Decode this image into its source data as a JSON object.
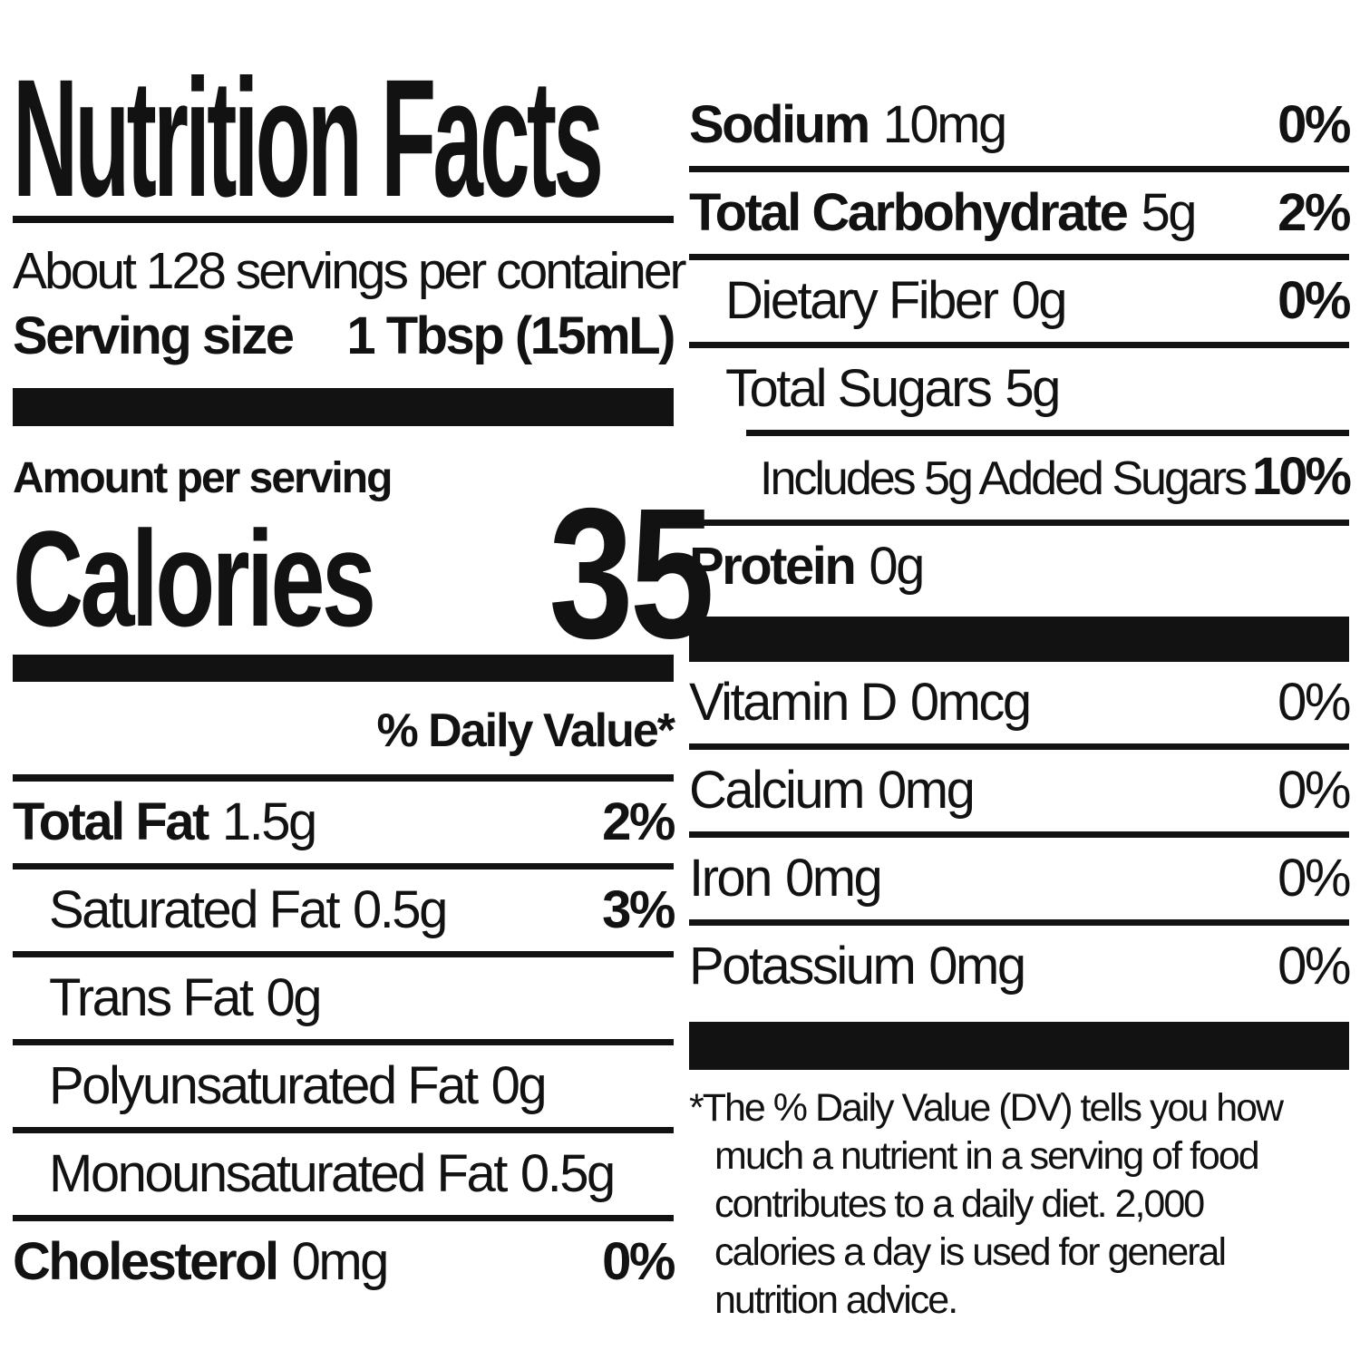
{
  "colors": {
    "ink": "#121212",
    "paper": "#ffffff"
  },
  "label": {
    "title": "Nutrition Facts",
    "servings_per_container": "About 128 servings per container",
    "serving_size_label": "Serving size",
    "serving_size_value": "1 Tbsp (15mL)",
    "amount_per_serving": "Amount per serving",
    "calories_label": "Calories",
    "calories_value": "35",
    "daily_value_header": "% Daily Value*",
    "fat_rows": [
      {
        "name": "Total Fat",
        "value": "1.5g",
        "pct": "2%",
        "nameBold": true,
        "pctBold": true,
        "indent": 0,
        "sep": "full"
      },
      {
        "name": "Saturated Fat",
        "value": "0.5g",
        "pct": "3%",
        "nameBold": false,
        "pctBold": true,
        "indent": 1,
        "sep": "full"
      },
      {
        "name": "Trans Fat",
        "value": "0g",
        "pct": "",
        "nameBold": false,
        "indent": 1,
        "sep": "full"
      },
      {
        "name": "Polyunsaturated Fat",
        "value": "0g",
        "pct": "",
        "nameBold": false,
        "indent": 1,
        "sep": "full"
      },
      {
        "name": "Monounsaturated Fat",
        "value": "0.5g",
        "pct": "",
        "nameBold": false,
        "indent": 1,
        "sep": "full"
      },
      {
        "name": "Cholesterol",
        "value": "0mg",
        "pct": "0%",
        "nameBold": true,
        "pctBold": true,
        "indent": 0,
        "sep": "none"
      }
    ],
    "carb_rows": [
      {
        "name": "Sodium",
        "value": "10mg",
        "pct": "0%",
        "nameBold": true,
        "pctBold": true,
        "indent": 0,
        "sep": "full"
      },
      {
        "name": "Total Carbohydrate",
        "value": "5g",
        "pct": "2%",
        "nameBold": true,
        "pctBold": true,
        "indent": 0,
        "sep": "full"
      },
      {
        "name": "Dietary Fiber",
        "value": "0g",
        "pct": "0%",
        "nameBold": false,
        "pctBold": true,
        "indent": 1,
        "sep": "full"
      },
      {
        "name": "Total Sugars",
        "value": "5g",
        "pct": "",
        "nameBold": false,
        "indent": 1,
        "sep": "partial"
      },
      {
        "name": "Includes 5g Added Sugars",
        "value": "",
        "pct": "10%",
        "nameBold": false,
        "pctBold": true,
        "indent": 2,
        "sep": "full",
        "tight": true
      },
      {
        "name": "Protein",
        "value": "0g",
        "pct": "",
        "nameBold": true,
        "indent": 0,
        "sep": "none"
      }
    ],
    "vitamin_rows": [
      {
        "name": "Vitamin D",
        "value": "0mcg",
        "pct": "0%",
        "nameBold": false,
        "pctBold": false,
        "indent": 0,
        "sep": "full"
      },
      {
        "name": "Calcium",
        "value": "0mg",
        "pct": "0%",
        "nameBold": false,
        "pctBold": false,
        "indent": 0,
        "sep": "full"
      },
      {
        "name": "Iron",
        "value": "0mg",
        "pct": "0%",
        "nameBold": false,
        "pctBold": false,
        "indent": 0,
        "sep": "full"
      },
      {
        "name": "Potassium",
        "value": "0mg",
        "pct": "0%",
        "nameBold": false,
        "pctBold": false,
        "indent": 0,
        "sep": "none"
      }
    ],
    "footnote": "*The % Daily Value (DV) tells you how\nmuch a nutrient in a serving of food\ncontributes to a daily diet. 2,000\ncalories a day is used for general\nnutrition advice."
  }
}
